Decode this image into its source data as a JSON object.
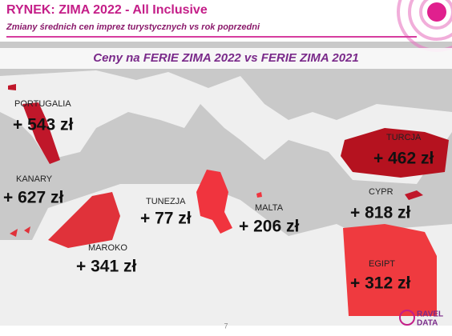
{
  "header": {
    "title": "RYNEK:  ZIMA 2022 - All Inclusive",
    "subtitle": "Zmiany średnich cen imprez turystycznych vs rok poprzedni"
  },
  "banner": "Ceny na FERIE ZIMA 2022  vs  FERIE ZIMA 2021",
  "regions": [
    {
      "name": "PORTUGALIA",
      "change": "+ 543 zł"
    },
    {
      "name": "KANARY",
      "change": "+ 627 zł"
    },
    {
      "name": "TUNEZJA",
      "change": "+ 77 zł"
    },
    {
      "name": "MALTA",
      "change": "+ 206 zł"
    },
    {
      "name": "MAROKO",
      "change": "+ 341 zł"
    },
    {
      "name": "TURCJA",
      "change": "+ 462 zł"
    },
    {
      "name": "CYPR",
      "change": "+ 818 zł"
    },
    {
      "name": "EGIPT",
      "change": "+ 312 zł"
    }
  ],
  "footer": {
    "page": "7",
    "logo_top": "RAVEL",
    "logo_bottom": "DATA"
  }
}
